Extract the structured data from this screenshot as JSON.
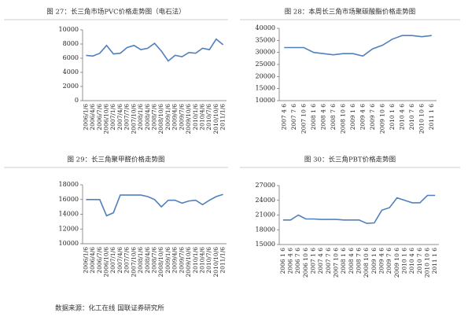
{
  "chart_data": [
    {
      "type": "line",
      "title": "图 27：长三角市场PVC价格走势图（电石法）",
      "categories": [
        "2006/1/6",
        "2006/4/6",
        "2006/7/6",
        "2006/10/6",
        "2007/1/6",
        "2007/4/6",
        "2007/7/6",
        "2007/10/6",
        "2008/1/6",
        "2008/4/6",
        "2008/7/6",
        "2008/10/6",
        "2009/1/6",
        "2009/4/6",
        "2009/7/6",
        "2009/10/6",
        "2010/1/6",
        "2010/4/6",
        "2010/7/6",
        "2010/10/6",
        "2011/1/6"
      ],
      "values": [
        6400,
        6300,
        6700,
        7800,
        6600,
        6700,
        7500,
        7800,
        7200,
        7400,
        8100,
        7000,
        5600,
        6400,
        6200,
        6800,
        6700,
        7400,
        7200,
        8700,
        7900
      ],
      "color": "#4f81bd",
      "ylim": [
        0,
        10000
      ],
      "yticks": [
        0,
        2000,
        4000,
        6000,
        8000,
        10000
      ]
    },
    {
      "type": "line",
      "title": "图 28：本周长三角市场聚碳酸酯价格走势图",
      "categories": [
        "2007 4 6",
        "2007 7 6",
        "2007 10 6",
        "2008 1 6",
        "2008 4 6",
        "2008 7 6",
        "2008 10 6",
        "2009 1 6",
        "2009 4 6",
        "2009 7 6",
        "2009 10 6",
        "2010 1 6",
        "2010 4 6",
        "2010 7 6",
        "2010 10 6",
        "2011 1 6"
      ],
      "values": [
        32000,
        32000,
        32000,
        30000,
        29500,
        29000,
        29500,
        29500,
        28500,
        31500,
        33000,
        35500,
        37000,
        37000,
        36500,
        37000
      ],
      "color": "#4f81bd",
      "ylim": [
        10000,
        40000
      ],
      "yticks": [
        10000,
        15000,
        20000,
        25000,
        30000,
        35000,
        40000
      ]
    },
    {
      "type": "line",
      "title": "图 29：长三角聚甲醛价格走势图",
      "categories": [
        "2006/1/6",
        "2006/4/6",
        "2006/7/6",
        "2006/10/6",
        "2007/1/6",
        "2007/4/6",
        "2007/7/6",
        "2007/10/6",
        "2008/1/6",
        "2008/4/6",
        "2008/7/6",
        "2008/10/6",
        "2009/1/6",
        "2009/4/6",
        "2009/7/6",
        "2009/10/6",
        "2010/1/6",
        "2010/4/6",
        "2010/7/6",
        "2010/10/6",
        "2011/1/6"
      ],
      "values": [
        16000,
        16000,
        16000,
        13800,
        14200,
        16600,
        16600,
        16600,
        16600,
        16400,
        16000,
        15000,
        15900,
        15900,
        15500,
        15800,
        15900,
        15300,
        15900,
        16400,
        16700
      ],
      "color": "#4f81bd",
      "ylim": [
        10000,
        18000
      ],
      "yticks": [
        10000,
        12000,
        14000,
        16000,
        18000
      ]
    },
    {
      "type": "line",
      "title": "图 30：长三角PBT价格走势图",
      "categories": [
        "2006 1 6",
        "2006 4 6",
        "2006 7 6",
        "2006 10 6",
        "2007 1 6",
        "2007 4 6",
        "2007 7 6",
        "2007 10 6",
        "2008 1 6",
        "2008 4 6",
        "2008 7 6",
        "2008 10 6",
        "2009 1 6",
        "2009 4 6",
        "2009 7 6",
        "2009 10 6",
        "2010 1 6",
        "2010 4 6",
        "2010 7 6",
        "2010 10 6",
        "2011 1 6"
      ],
      "values": [
        20000,
        20000,
        21000,
        20200,
        20200,
        20100,
        20100,
        20100,
        20000,
        20000,
        20000,
        19300,
        19400,
        22000,
        22500,
        24500,
        24000,
        23500,
        23500,
        25000,
        25000
      ],
      "color": "#4f81bd",
      "ylim": [
        15000,
        27000
      ],
      "yticks": [
        15000,
        18000,
        21000,
        24000,
        27000
      ]
    }
  ],
  "source": "数据来源：化工在线 国联证券研究所"
}
